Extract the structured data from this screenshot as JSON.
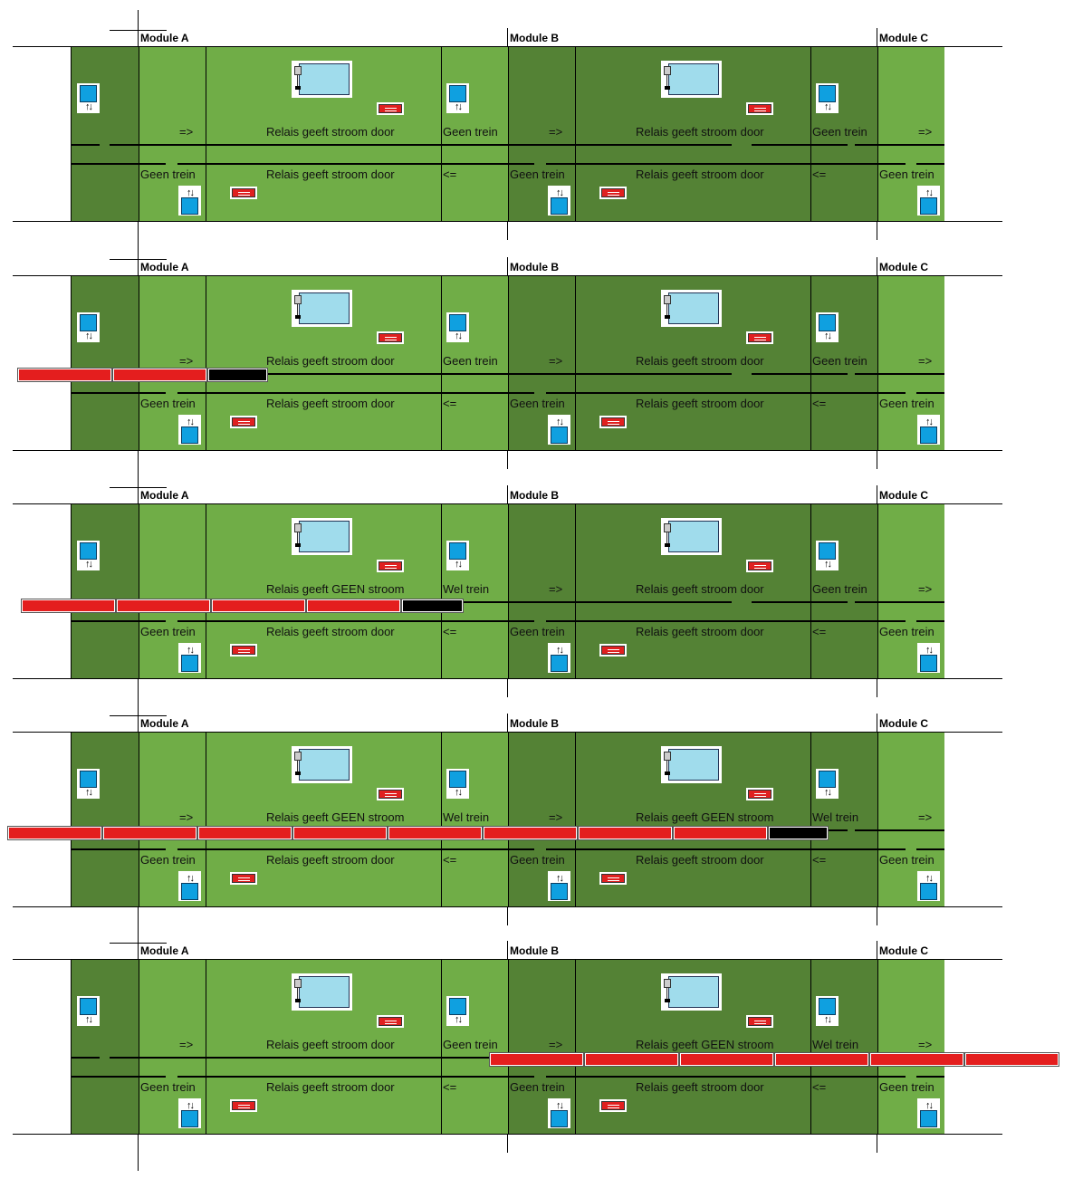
{
  "colors": {
    "dark_green": "#548235",
    "light_green": "#70ad47",
    "sensor": "#0fa0e0",
    "relay_screen": "#a0dcec",
    "switch": "#e02020",
    "wagon": "#e41e1e",
    "locomotive": "#000000"
  },
  "icons": [
    "sensor-icon",
    "relay-icon",
    "switch-icon"
  ],
  "panels": [
    {
      "module_a": "Module A",
      "module_b": "Module B",
      "module_c": "Module C",
      "top": {
        "arrow_a": "=>",
        "relay_a": "Relais  geeft stroom door",
        "status_ab": "Geen trein",
        "arrow_b": "=>",
        "relay_b": "Relais  geeft stroom door",
        "status_bc": "Geen trein",
        "arrow_c": "=>"
      },
      "bottom": {
        "status_a": "Geen trein",
        "relay_a": "Relais geeft stroom door",
        "arrow_ab": "<=",
        "status_b": "Geen trein",
        "relay_b": "Relais geeft stroom door",
        "arrow_bc": "<=",
        "status_c": "Geen trein"
      },
      "train": {
        "wagons": 0,
        "has_loco": false
      }
    },
    {
      "module_a": "Module A",
      "module_b": "Module B",
      "module_c": "Module C",
      "top": {
        "arrow_a": "=>",
        "relay_a": "Relais  geeft stroom door",
        "status_ab": "Geen trein",
        "arrow_b": "=>",
        "relay_b": "Relais  geeft stroom door",
        "status_bc": "Geen trein",
        "arrow_c": "=>"
      },
      "bottom": {
        "status_a": "Geen trein",
        "relay_a": "Relais geeft stroom door",
        "arrow_ab": "<=",
        "status_b": "Geen trein",
        "relay_b": "Relais geeft stroom door",
        "arrow_bc": "<=",
        "status_c": "Geen trein"
      },
      "train": {
        "wagons": 2,
        "has_loco": true
      }
    },
    {
      "module_a": "Module A",
      "module_b": "Module B",
      "module_c": "Module C",
      "top": {
        "arrow_a": "",
        "relay_a": "Relais geeft GEEN stroom",
        "status_ab": "Wel trein",
        "arrow_b": "=>",
        "relay_b": "Relais  geeft stroom door",
        "status_bc": "Geen trein",
        "arrow_c": "=>"
      },
      "bottom": {
        "status_a": "Geen trein",
        "relay_a": "Relais geeft stroom door",
        "arrow_ab": "<=",
        "status_b": "Geen trein",
        "relay_b": "Relais geeft stroom door",
        "arrow_bc": "<=",
        "status_c": "Geen trein"
      },
      "train": {
        "wagons": 4,
        "has_loco": true
      }
    },
    {
      "module_a": "Module A",
      "module_b": "Module B",
      "module_c": "Module C",
      "top": {
        "arrow_a": "=>",
        "relay_a": "Relais geeft GEEN stroom",
        "status_ab": "Wel trein",
        "arrow_b": "=>",
        "relay_b": "Relais geeft GEEN stroom",
        "status_bc": "Wel trein",
        "arrow_c": "=>"
      },
      "bottom": {
        "status_a": "Geen trein",
        "relay_a": "Relais geeft stroom door",
        "arrow_ab": "<=",
        "status_b": "Geen trein",
        "relay_b": "Relais geeft stroom door",
        "arrow_bc": "<=",
        "status_c": "Geen trein"
      },
      "train": {
        "wagons": 8,
        "has_loco": true
      }
    },
    {
      "module_a": "Module A",
      "module_b": "Module B",
      "module_c": "Module C",
      "top": {
        "arrow_a": "=>",
        "relay_a": "Relais geeft stroom door",
        "status_ab": "Geen trein",
        "arrow_b": "=>",
        "relay_b": "Relais geeft GEEN stroom",
        "status_bc": "Wel trein",
        "arrow_c": "=>"
      },
      "bottom": {
        "status_a": "Geen trein",
        "relay_a": "Relais geeft stroom door",
        "arrow_ab": "<=",
        "status_b": "Geen trein",
        "relay_b": "Relais geeft stroom door",
        "arrow_bc": "<=",
        "status_c": "Geen trein"
      },
      "train": {
        "wagons": 6,
        "has_loco": false
      }
    }
  ]
}
